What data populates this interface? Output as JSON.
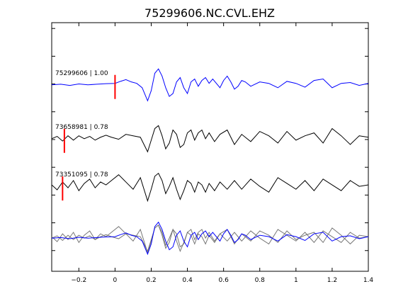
{
  "chart_data": {
    "type": "line",
    "title": "75299606.NC.CVL.EHZ",
    "xlim": [
      -0.35,
      1.4
    ],
    "ylim": [
      0,
      6
    ],
    "x_ticks": [
      -0.2,
      0,
      0.2,
      0.4,
      0.6,
      0.8,
      1,
      1.2,
      1.4
    ],
    "x_tick_labels": [
      "−0.2",
      "0",
      "0.2",
      "0.4",
      "0.6",
      "0.8",
      "1",
      "1.2",
      "1.4"
    ],
    "grid": false,
    "colors": {
      "primary": "#0000ff",
      "secondary": "#000000",
      "overlay_gray": "#777777",
      "pick": "#ff0000"
    },
    "traces": [
      {
        "label": "75299606 | 1.00",
        "offset": 4.5,
        "color": "#0000ff",
        "pick_time": 0.0,
        "x": [
          -0.35,
          -0.3,
          -0.25,
          -0.2,
          -0.15,
          -0.1,
          -0.05,
          0,
          0.03,
          0.06,
          0.09,
          0.12,
          0.15,
          0.18,
          0.2,
          0.22,
          0.24,
          0.26,
          0.28,
          0.3,
          0.32,
          0.34,
          0.36,
          0.38,
          0.4,
          0.42,
          0.44,
          0.46,
          0.48,
          0.5,
          0.52,
          0.54,
          0.56,
          0.58,
          0.6,
          0.62,
          0.64,
          0.66,
          0.68,
          0.7,
          0.72,
          0.75,
          0.8,
          0.85,
          0.9,
          0.95,
          1.0,
          1.05,
          1.1,
          1.15,
          1.2,
          1.25,
          1.3,
          1.35,
          1.4
        ],
        "y": [
          0,
          0.02,
          -0.02,
          0.03,
          0,
          0.02,
          0.04,
          0.05,
          0.12,
          0.18,
          0.1,
          0.05,
          -0.1,
          -0.55,
          -0.2,
          0.4,
          0.55,
          0.3,
          -0.1,
          -0.4,
          -0.3,
          0.1,
          0.25,
          -0.1,
          -0.3,
          0.1,
          0.2,
          -0.05,
          0.15,
          0.25,
          0.05,
          0.2,
          0.05,
          -0.1,
          0.15,
          0.3,
          0.1,
          -0.15,
          -0.05,
          0.15,
          0.1,
          -0.05,
          0.1,
          0.05,
          -0.1,
          0.12,
          0.05,
          -0.08,
          0.15,
          0.2,
          -0.1,
          0.05,
          0.08,
          -0.02,
          0.05
        ]
      },
      {
        "label": "73658981 | 0.78",
        "offset": 3.2,
        "color": "#000000",
        "pick_time": -0.28,
        "x": [
          -0.35,
          -0.32,
          -0.29,
          -0.26,
          -0.23,
          -0.2,
          -0.17,
          -0.14,
          -0.11,
          -0.08,
          -0.05,
          -0.02,
          0.02,
          0.06,
          0.1,
          0.14,
          0.18,
          0.2,
          0.22,
          0.24,
          0.26,
          0.28,
          0.3,
          0.32,
          0.34,
          0.36,
          0.38,
          0.4,
          0.42,
          0.44,
          0.46,
          0.48,
          0.5,
          0.52,
          0.55,
          0.58,
          0.62,
          0.66,
          0.7,
          0.75,
          0.8,
          0.85,
          0.9,
          0.95,
          1.0,
          1.05,
          1.1,
          1.15,
          1.2,
          1.25,
          1.3,
          1.35,
          1.4
        ],
        "y": [
          0,
          0.08,
          -0.08,
          0.1,
          -0.05,
          0.1,
          0,
          0.08,
          -0.05,
          0.05,
          0.12,
          0.05,
          -0.02,
          0.15,
          0.1,
          0.05,
          -0.45,
          -0.05,
          0.35,
          0.45,
          0.1,
          -0.35,
          -0.15,
          0.3,
          0.15,
          -0.3,
          -0.2,
          0.2,
          0.3,
          -0.05,
          0.2,
          0.3,
          0,
          0.2,
          -0.1,
          0.15,
          0.3,
          -0.2,
          0.15,
          -0.1,
          0.25,
          0.1,
          -0.15,
          0.25,
          -0.05,
          0.1,
          0.2,
          -0.15,
          0.35,
          0.1,
          -0.2,
          0.1,
          0.05
        ]
      },
      {
        "label": "73351095 | 0.78",
        "offset": 2.05,
        "color": "#000000",
        "pick_time": -0.29,
        "x": [
          -0.35,
          -0.32,
          -0.29,
          -0.26,
          -0.23,
          -0.2,
          -0.17,
          -0.14,
          -0.11,
          -0.08,
          -0.05,
          -0.02,
          0.02,
          0.06,
          0.1,
          0.14,
          0.18,
          0.2,
          0.22,
          0.24,
          0.26,
          0.28,
          0.3,
          0.32,
          0.34,
          0.36,
          0.38,
          0.4,
          0.42,
          0.44,
          0.46,
          0.48,
          0.5,
          0.52,
          0.55,
          0.58,
          0.62,
          0.66,
          0.7,
          0.75,
          0.8,
          0.85,
          0.9,
          0.95,
          1.0,
          1.05,
          1.1,
          1.15,
          1.2,
          1.25,
          1.3,
          1.35,
          1.4
        ],
        "y": [
          0.05,
          -0.12,
          0.15,
          -0.05,
          0.2,
          -0.15,
          0.1,
          0.25,
          -0.05,
          0.15,
          0.05,
          0.2,
          0.4,
          0.15,
          -0.1,
          0.3,
          -0.5,
          -0.1,
          0.35,
          0.45,
          0.2,
          -0.25,
          0,
          0.3,
          -0.1,
          -0.45,
          -0.15,
          0.2,
          0.1,
          -0.2,
          0.15,
          0.05,
          -0.2,
          0.1,
          -0.15,
          0.15,
          -0.1,
          0.2,
          -0.1,
          0.25,
          0,
          -0.2,
          0.3,
          0.1,
          -0.1,
          0.2,
          -0.15,
          0.25,
          0.05,
          -0.15,
          0.2,
          0,
          0.05
        ]
      }
    ],
    "overlay_offset": 0.8
  }
}
